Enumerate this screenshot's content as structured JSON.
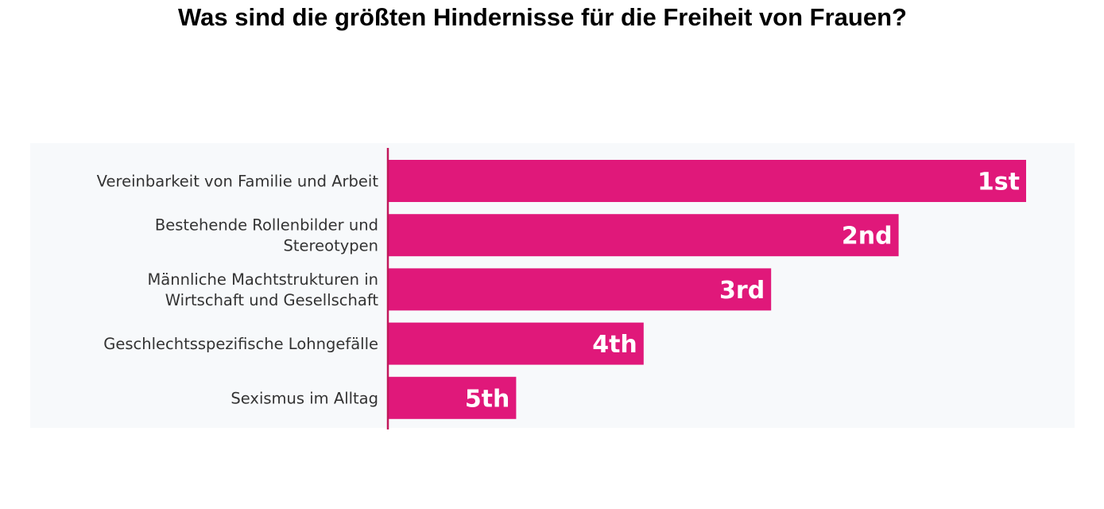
{
  "chart_data": {
    "type": "bar",
    "orientation": "horizontal",
    "title": "Was sind die größten Hindernisse für die Freiheit von Frauen?",
    "categories": [
      [
        "Vereinbarkeit von Familie und Arbeit"
      ],
      [
        "Bestehende Rollenbilder und",
        "Stereotypen"
      ],
      [
        "Männliche Machtstrukturen in",
        "Wirtschaft und Gesellschaft"
      ],
      [
        "Geschlechtsspezifische Lohngefälle"
      ],
      [
        "Sexismus im Alltag"
      ]
    ],
    "values": [
      5,
      4,
      3,
      2,
      1
    ],
    "data_labels": [
      "1st",
      "2nd",
      "3rd",
      "4th",
      "5th"
    ],
    "xlim": [
      0,
      5
    ],
    "grid": false,
    "legend": "none",
    "colors": {
      "bar": "#e0187a",
      "axis": "#c2185b",
      "panel_background": "#f7f9fb",
      "category_text": "#333333",
      "rank_text": "#ffffff"
    }
  }
}
